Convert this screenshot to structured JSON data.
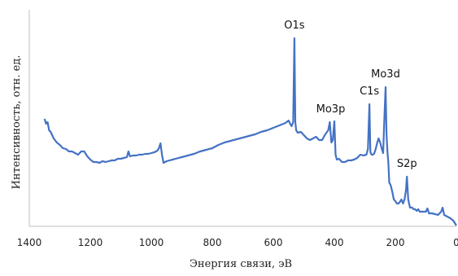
{
  "chart_data": {
    "type": "line",
    "title": "",
    "xlabel": "Энергия связи, эВ",
    "ylabel": "Интенсивность, отн. ед.",
    "xlim": [
      1400,
      0
    ],
    "x_reversed": true,
    "y_ticks_shown": false,
    "x_ticks": [
      1400,
      1200,
      1000,
      800,
      600,
      400,
      200,
      0
    ],
    "x_tick_labels": [
      "1400",
      "1200",
      "1000",
      "800",
      "600",
      "400",
      "200",
      "0"
    ],
    "grid": false,
    "legend": "none",
    "line_color": "#4472c4",
    "axis_color": "#bfbfbf",
    "annotations": [
      {
        "text": "O1s",
        "x": 531
      },
      {
        "text": "Mo3p",
        "x": 412
      },
      {
        "text": "C1s",
        "x": 285
      },
      {
        "text": "Mo3d",
        "x": 232
      },
      {
        "text": "S2p",
        "x": 162
      }
    ],
    "series": [
      {
        "values": [
          [
            1350,
            146
          ],
          [
            1345,
            152
          ],
          [
            1340,
            150
          ],
          [
            1335,
            160
          ],
          [
            1330,
            162
          ],
          [
            1320,
            170
          ],
          [
            1310,
            175
          ],
          [
            1300,
            178
          ],
          [
            1290,
            182
          ],
          [
            1280,
            183
          ],
          [
            1270,
            186
          ],
          [
            1260,
            186
          ],
          [
            1250,
            188
          ],
          [
            1240,
            190
          ],
          [
            1230,
            186
          ],
          [
            1220,
            186
          ],
          [
            1210,
            192
          ],
          [
            1200,
            196
          ],
          [
            1190,
            199
          ],
          [
            1180,
            199
          ],
          [
            1170,
            200
          ],
          [
            1160,
            198
          ],
          [
            1150,
            199
          ],
          [
            1140,
            198
          ],
          [
            1130,
            197
          ],
          [
            1120,
            197
          ],
          [
            1110,
            195
          ],
          [
            1100,
            195
          ],
          [
            1090,
            194
          ],
          [
            1080,
            193
          ],
          [
            1075,
            186
          ],
          [
            1070,
            192
          ],
          [
            1060,
            191
          ],
          [
            1050,
            191
          ],
          [
            1040,
            190
          ],
          [
            1030,
            190
          ],
          [
            1020,
            189
          ],
          [
            1010,
            189
          ],
          [
            1000,
            188
          ],
          [
            990,
            187
          ],
          [
            980,
            185
          ],
          [
            975,
            182
          ],
          [
            970,
            176
          ],
          [
            965,
            190
          ],
          [
            960,
            200
          ],
          [
            950,
            198
          ],
          [
            940,
            197
          ],
          [
            930,
            196
          ],
          [
            920,
            195
          ],
          [
            900,
            193
          ],
          [
            880,
            191
          ],
          [
            860,
            189
          ],
          [
            840,
            186
          ],
          [
            820,
            184
          ],
          [
            800,
            182
          ],
          [
            780,
            178
          ],
          [
            760,
            175
          ],
          [
            740,
            173
          ],
          [
            720,
            171
          ],
          [
            700,
            169
          ],
          [
            680,
            167
          ],
          [
            660,
            165
          ],
          [
            640,
            162
          ],
          [
            620,
            160
          ],
          [
            600,
            157
          ],
          [
            580,
            154
          ],
          [
            560,
            151
          ],
          [
            550,
            148
          ],
          [
            545,
            152
          ],
          [
            540,
            155
          ],
          [
            535,
            150
          ],
          [
            531,
            47
          ],
          [
            528,
            150
          ],
          [
            525,
            160
          ],
          [
            520,
            163
          ],
          [
            510,
            162
          ],
          [
            500,
            166
          ],
          [
            490,
            170
          ],
          [
            480,
            172
          ],
          [
            470,
            170
          ],
          [
            460,
            168
          ],
          [
            450,
            172
          ],
          [
            440,
            172
          ],
          [
            430,
            165
          ],
          [
            420,
            160
          ],
          [
            415,
            150
          ],
          [
            410,
            175
          ],
          [
            405,
            172
          ],
          [
            400,
            149
          ],
          [
            396,
            190
          ],
          [
            392,
            196
          ],
          [
            385,
            195
          ],
          [
            375,
            199
          ],
          [
            365,
            199
          ],
          [
            355,
            197
          ],
          [
            345,
            197
          ],
          [
            335,
            196
          ],
          [
            325,
            194
          ],
          [
            315,
            190
          ],
          [
            305,
            191
          ],
          [
            295,
            190
          ],
          [
            290,
            183
          ],
          [
            285,
            128
          ],
          [
            282,
            187
          ],
          [
            278,
            190
          ],
          [
            274,
            190
          ],
          [
            270,
            189
          ],
          [
            265,
            184
          ],
          [
            260,
            176
          ],
          [
            255,
            170
          ],
          [
            250,
            175
          ],
          [
            245,
            182
          ],
          [
            240,
            188
          ],
          [
            236,
            145
          ],
          [
            232,
            107
          ],
          [
            229,
            164
          ],
          [
            226,
            187
          ],
          [
            223,
            200
          ],
          [
            220,
            224
          ],
          [
            215,
            228
          ],
          [
            210,
            236
          ],
          [
            205,
            245
          ],
          [
            200,
            247
          ],
          [
            195,
            250
          ],
          [
            190,
            250
          ],
          [
            185,
            248
          ],
          [
            180,
            245
          ],
          [
            175,
            250
          ],
          [
            170,
            245
          ],
          [
            165,
            233
          ],
          [
            162,
            217
          ],
          [
            158,
            245
          ],
          [
            152,
            255
          ],
          [
            145,
            255
          ],
          [
            140,
            257
          ],
          [
            135,
            257
          ],
          [
            130,
            259
          ],
          [
            125,
            257
          ],
          [
            120,
            260
          ],
          [
            110,
            260
          ],
          [
            100,
            260
          ],
          [
            95,
            256
          ],
          [
            90,
            262
          ],
          [
            80,
            262
          ],
          [
            70,
            263
          ],
          [
            60,
            264
          ],
          [
            55,
            262
          ],
          [
            50,
            260
          ],
          [
            45,
            255
          ],
          [
            40,
            264
          ],
          [
            30,
            266
          ],
          [
            20,
            268
          ],
          [
            10,
            271
          ],
          [
            5,
            274
          ],
          [
            0,
            277
          ]
        ]
      }
    ]
  }
}
